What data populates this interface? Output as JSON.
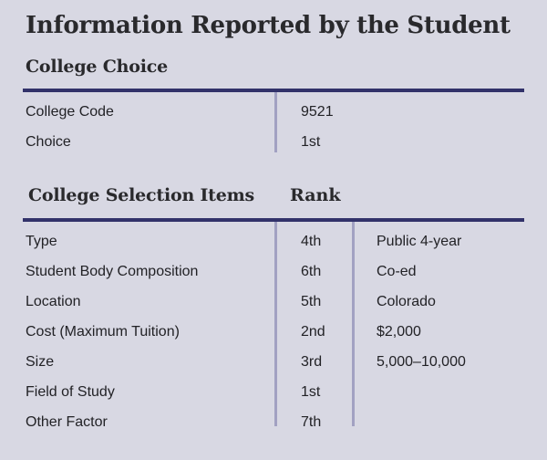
{
  "page": {
    "title": "Information Reported by the Student",
    "background_color": "#d8d8e3",
    "rule_color": "#32326a",
    "divider_color": "#a2a1c2"
  },
  "college_choice": {
    "heading": "College Choice",
    "rows": [
      {
        "label": "College Code",
        "value": "9521"
      },
      {
        "label": "Choice",
        "value": "1st"
      }
    ]
  },
  "college_selection": {
    "heading": "College Selection Items",
    "rank_header": "Rank",
    "rows": [
      {
        "label": "Type",
        "rank": "4th",
        "value": "Public 4-year"
      },
      {
        "label": "Student Body Composition",
        "rank": "6th",
        "value": "Co-ed"
      },
      {
        "label": "Location",
        "rank": "5th",
        "value": "Colorado"
      },
      {
        "label": "Cost (Maximum Tuition)",
        "rank": "2nd",
        "value": "$2,000"
      },
      {
        "label": "Size",
        "rank": "3rd",
        "value": "5,000–10,000"
      },
      {
        "label": "Field of Study",
        "rank": "1st",
        "value": ""
      },
      {
        "label": "Other Factor",
        "rank": "7th",
        "value": ""
      }
    ]
  }
}
